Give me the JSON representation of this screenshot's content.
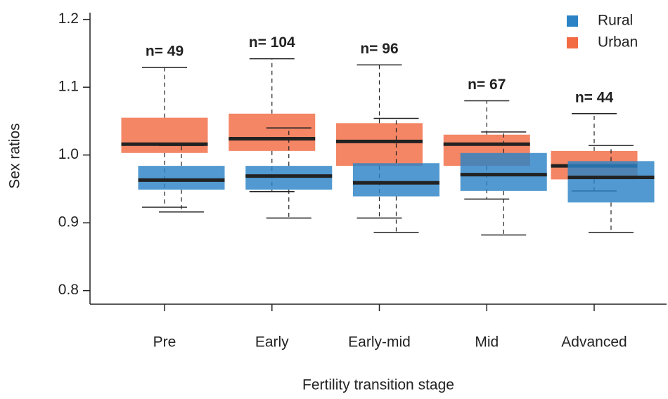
{
  "chart_data": {
    "type": "box",
    "x_label": "Fertility transition stage",
    "y_label": "Sex ratios",
    "categories": [
      "Pre",
      "Early",
      "Early-mid",
      "Mid",
      "Advanced"
    ],
    "series": [
      {
        "name": "Rural",
        "color": "#2b83c6",
        "boxes": [
          {
            "whislo": 0.916,
            "q1": 0.949,
            "med": 0.963,
            "q3": 0.984,
            "whishi": 1.014
          },
          {
            "whislo": 0.907,
            "q1": 0.949,
            "med": 0.969,
            "q3": 0.984,
            "whishi": 1.04
          },
          {
            "whislo": 0.886,
            "q1": 0.939,
            "med": 0.959,
            "q3": 0.988,
            "whishi": 1.054
          },
          {
            "whislo": 0.882,
            "q1": 0.947,
            "med": 0.971,
            "q3": 1.003,
            "whishi": 1.034
          },
          {
            "whislo": 0.886,
            "q1": 0.93,
            "med": 0.967,
            "q3": 0.991,
            "whishi": 1.014
          }
        ]
      },
      {
        "name": "Urban",
        "color": "#f26b43",
        "boxes": [
          {
            "whislo": 0.923,
            "q1": 1.003,
            "med": 1.016,
            "q3": 1.055,
            "whishi": 1.129
          },
          {
            "whislo": 0.946,
            "q1": 1.006,
            "med": 1.024,
            "q3": 1.061,
            "whishi": 1.142
          },
          {
            "whislo": 0.907,
            "q1": 0.984,
            "med": 1.02,
            "q3": 1.047,
            "whishi": 1.133
          },
          {
            "whislo": 0.935,
            "q1": 0.984,
            "med": 1.016,
            "q3": 1.03,
            "whishi": 1.08
          },
          {
            "whislo": 0.947,
            "q1": 0.964,
            "med": 0.984,
            "q3": 1.006,
            "whishi": 1.061
          }
        ]
      }
    ],
    "annotations": [
      "n= 49",
      "n= 104",
      "n= 96",
      "n= 67",
      "n= 44"
    ],
    "ylim": [
      0.78,
      1.21
    ],
    "yticks": [
      0.8,
      0.9,
      {
        "value": 1,
        "label": "1.0"
      },
      1.1,
      1.2
    ],
    "legend": "upper right"
  }
}
